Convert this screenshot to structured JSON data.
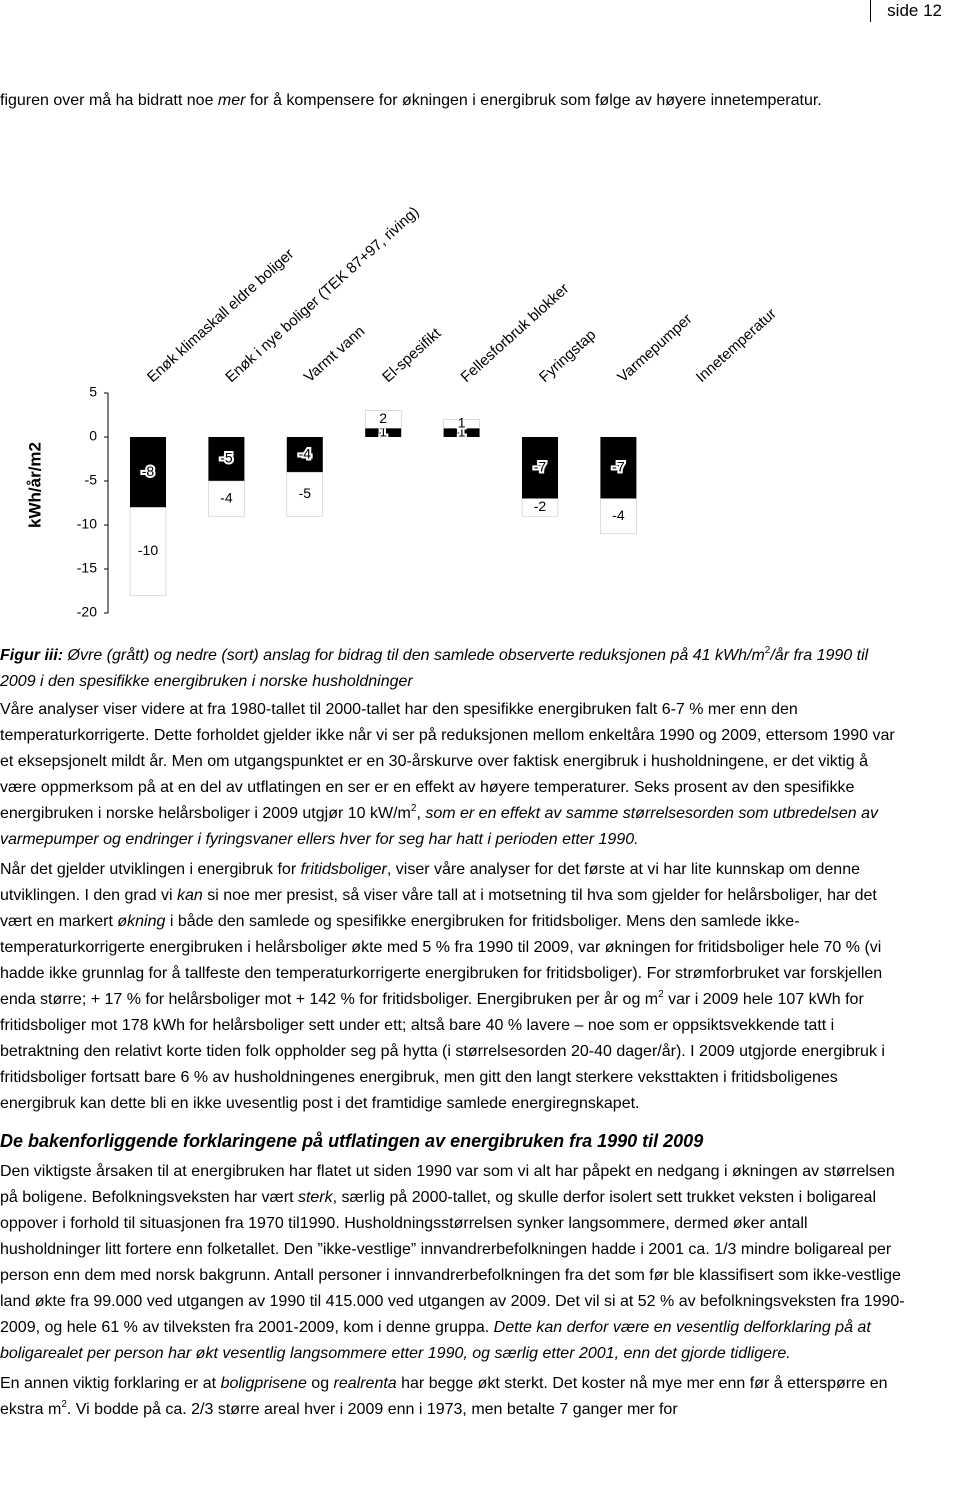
{
  "header": {
    "page": "side 12"
  },
  "intro": {
    "runs": [
      {
        "text": "figuren over må ha bidratt noe "
      },
      {
        "text": "mer",
        "style": "i"
      },
      {
        "text": " for å kompensere for økningen i energibruk som følge av høyere innetemperatur."
      }
    ]
  },
  "chart_data": {
    "type": "stacked-bar",
    "ylabel": "kWh/år/m2",
    "categories": [
      "Enøk klimaskall eldre boliger",
      "Enøk i nye boliger (TEK 87+97, riving)",
      "Varmt vann",
      "El-spesifikt",
      "Fellesforbruk blokker",
      "Fyringstap",
      "Varmepumper",
      "Innetemperatur"
    ],
    "series": [
      {
        "color": "#000000",
        "values": [
          -8,
          -5,
          -4,
          1,
          1,
          -7,
          -7,
          null
        ]
      },
      {
        "color": "#ffffff",
        "values": [
          -10,
          -4,
          -5,
          2,
          1,
          -2,
          -4,
          null
        ]
      }
    ],
    "ylim": [
      -20,
      5
    ],
    "yticks": [
      5,
      0,
      -5,
      -10,
      -15,
      -20
    ]
  },
  "blocks": [
    {
      "kind": "caption",
      "runs": [
        {
          "text": "Figur iii:",
          "style": "bi"
        },
        {
          "text": " Øvre (grått) og nedre (sort) anslag for bidrag til den samlede observerte reduksjonen på 41 kWh/m",
          "style": "i"
        },
        {
          "text": "2",
          "style": "sup"
        },
        {
          "text": "/år fra 1990 til 2009 i den spesifikke energibruken i norske husholdninger",
          "style": "i"
        }
      ]
    },
    {
      "kind": "p",
      "runs": [
        {
          "text": "Våre analyser viser videre at fra 1980-tallet til 2000-tallet har den spesifikke energibruken falt 6-7 % mer enn den temperaturkorrigerte. Dette forholdet gjelder ikke når vi ser på reduksjonen mellom enkeltåra 1990 og 2009, ettersom 1990 var et eksepsjonelt mildt år. Men om utgangspunktet er en 30-årskurve over faktisk energibruk i husholdningene, er det viktig å være oppmerksom på at en del av utflatingen en ser er en effekt av høyere temperaturer. Seks prosent av den spesifikke energibruken i norske helårsboliger i 2009 utgjør 10 kW/m"
        },
        {
          "text": "2",
          "style": "sup"
        },
        {
          "text": ", "
        },
        {
          "text": "som er en effekt av samme størrelsesorden som utbredelsen av varmepumper og endringer i fyringsvaner ellers hver for seg har hatt i perioden etter 1990.",
          "style": "i"
        }
      ]
    },
    {
      "kind": "p",
      "runs": [
        {
          "text": "Når det gjelder utviklingen i energibruk for "
        },
        {
          "text": "fritidsboliger",
          "style": "i"
        },
        {
          "text": ", viser våre analyser for det første at vi har lite kunnskap om denne utviklingen. I den grad vi "
        },
        {
          "text": "kan",
          "style": "i"
        },
        {
          "text": " si noe mer presist, så viser våre tall at i motsetning til hva som gjelder for helårsboliger, har det vært en markert "
        },
        {
          "text": "økning",
          "style": "i"
        },
        {
          "text": " i både den samlede og spesifikke energibruken for fritidsboliger. Mens den samlede ikke-temperaturkorrigerte energibruken i helårsboliger økte med 5 % fra 1990 til 2009, var økningen for fritidsboliger hele 70 % (vi hadde ikke grunnlag for å tallfeste den temperaturkorrigerte energibruken for fritidsboliger). For strømforbruket var forskjellen enda større; + 17 % for helårsboliger mot + 142 % for fritidsboliger. Energibruken per år og m"
        },
        {
          "text": "2",
          "style": "sup"
        },
        {
          "text": " var i 2009 hele 107 kWh for fritidsboliger mot 178 kWh for helårsboliger sett under ett; altså bare 40 % lavere – noe som er oppsiktsvekkende tatt i betraktning den relativt korte tiden folk oppholder seg på hytta (i størrelsesorden 20-40 dager/år). I 2009 utgjorde energibruk i fritidsboliger fortsatt bare 6 % av husholdningenes energibruk, men gitt den langt sterkere veksttakten i fritidsboligenes energibruk kan dette bli en ikke uvesentlig post i det framtidige samlede energiregnskapet."
        }
      ]
    },
    {
      "kind": "heading",
      "runs": [
        {
          "text": "De bakenforliggende forklaringene på utflatingen av energibruken fra 1990 til 2009",
          "style": "i"
        }
      ]
    },
    {
      "kind": "p",
      "runs": [
        {
          "text": "Den viktigste årsaken til at energibruken har flatet ut siden 1990 var som vi alt har påpekt en nedgang i økningen av størrelsen på boligene. Befolkningsveksten har vært "
        },
        {
          "text": "sterk",
          "style": "i"
        },
        {
          "text": ", særlig på 2000-tallet, og skulle derfor isolert sett trukket veksten i boligareal oppover i forhold til situasjonen fra 1970 til1990. Husholdningsstørrelsen synker langsommere, dermed øker antall husholdninger litt fortere enn folketallet. Den ”ikke-vestlige” innvandrerbefolkningen hadde i 2001 ca. 1/3 mindre boligareal per person enn dem med norsk bakgrunn. Antall personer i innvandrerbefolkningen fra det som før ble klassifisert som ikke-vestlige land økte fra 99.000 ved utgangen av 1990 til 415.000 ved utgangen av 2009. Det vil si at 52 % av befolkningsveksten fra 1990-2009, og hele 61 % av tilveksten fra 2001-2009, kom i denne gruppa. "
        },
        {
          "text": "Dette kan derfor være en vesentlig delforklaring på at boligarealet per person har økt vesentlig langsommere etter 1990, og særlig etter 2001, enn det gjorde tidligere.",
          "style": "i"
        }
      ]
    },
    {
      "kind": "p",
      "runs": [
        {
          "text": "En annen viktig forklaring er at "
        },
        {
          "text": "boligprisene",
          "style": "i"
        },
        {
          "text": " og "
        },
        {
          "text": "realrenta",
          "style": "i"
        },
        {
          "text": " har begge økt sterkt.  Det koster nå mye mer enn før å etterspørre en ekstra m"
        },
        {
          "text": "2",
          "style": "sup"
        },
        {
          "text": ". Vi bodde på ca. 2/3 større areal hver i 2009 enn i 1973, men betalte 7 ganger mer for"
        }
      ]
    }
  ]
}
